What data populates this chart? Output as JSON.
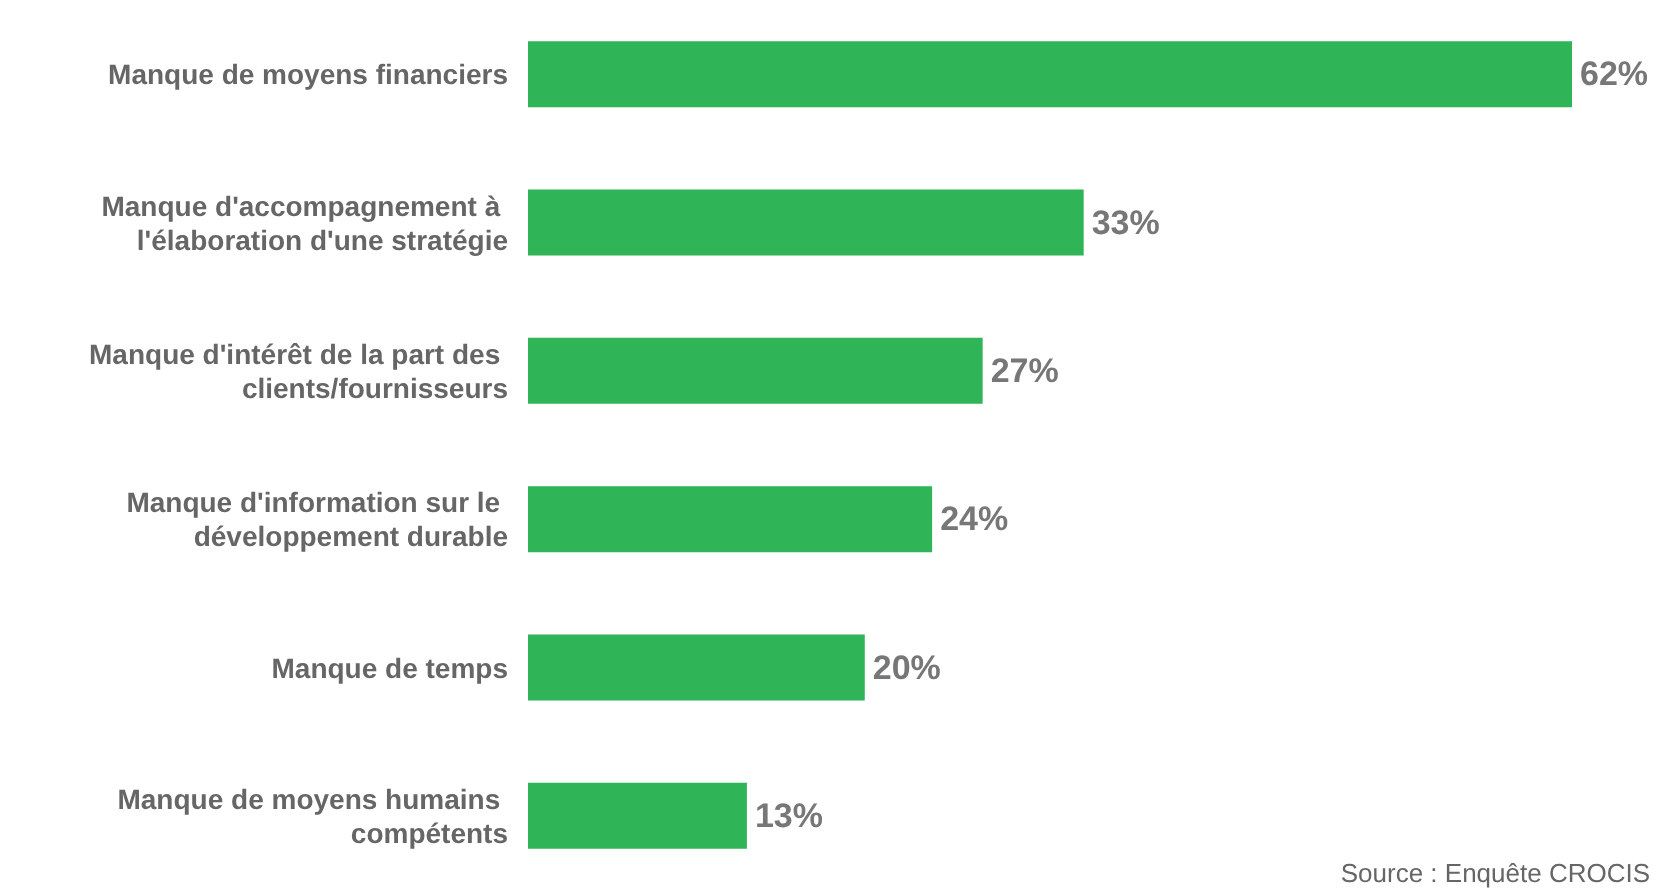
{
  "chart_data": {
    "type": "bar",
    "orientation": "horizontal",
    "categories": [
      "Manque de moyens financiers",
      "Manque d'accompagnement à l'élaboration d'une stratégie",
      "Manque d'intérêt de la part des clients/fournisseurs",
      "Manque d'information sur le développement durable",
      "Manque de temps",
      "Manque de moyens humains compétents"
    ],
    "values": [
      62,
      33,
      27,
      24,
      20,
      13
    ],
    "value_labels": [
      "62%",
      "33%",
      "27%",
      "24%",
      "20%",
      "13%"
    ],
    "color": "#2fb457",
    "annotations": [
      "Source : Enquête CROCIS"
    ]
  }
}
